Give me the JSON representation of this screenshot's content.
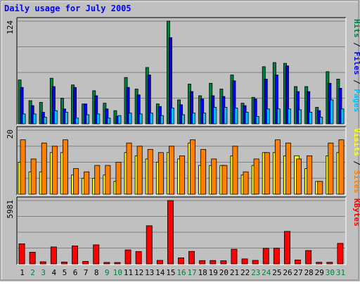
{
  "chart_data": {
    "type": "bar",
    "title": "Daily usage for July 2005",
    "colors": {
      "background": "#c0c0c0",
      "frame_light": "#ffffff",
      "frame_dark": "#808080",
      "plot_bg": "#c0c0c0",
      "gridline": "#808080",
      "title": "#0000ff",
      "hits": "#008040",
      "files": "#0000ff",
      "pages": "#00c0ff",
      "visits": "#ffff00",
      "sites": "#ff8000",
      "kbytes": "#ff0000",
      "weekday_label": "#000000",
      "weekend_label": "#008040"
    },
    "x_labels": [
      "1",
      "2",
      "3",
      "4",
      "5",
      "6",
      "7",
      "8",
      "9",
      "10",
      "11",
      "12",
      "13",
      "14",
      "15",
      "16",
      "17",
      "18",
      "19",
      "20",
      "21",
      "22",
      "23",
      "24",
      "25",
      "26",
      "27",
      "28",
      "29",
      "30",
      "31"
    ],
    "weekend_days": [
      "2",
      "3",
      "9",
      "10",
      "16",
      "17",
      "23",
      "24",
      "30",
      "31"
    ],
    "panels": [
      {
        "id": "usage",
        "max_label": "124",
        "ymax": 124,
        "legend": [
          {
            "label": "Pages",
            "color": "#00c0ff"
          },
          {
            "label": "Files",
            "color": "#0000ff"
          },
          {
            "label": "Hits",
            "color": "#008040"
          }
        ],
        "separator": " / ",
        "series": [
          {
            "name": "Hits",
            "values": [
              53,
              28,
              26,
              55,
              31,
              47,
              24,
              40,
              25,
              16,
              56,
              42,
              68,
              24,
              124,
              29,
              48,
              34,
              49,
              42,
              59,
              25,
              32,
              69,
              74,
              73,
              45,
              45,
              20,
              63,
              54
            ]
          },
          {
            "name": "Files",
            "values": [
              44,
              22,
              14,
              45,
              18,
              44,
              24,
              34,
              18,
              9,
              44,
              35,
              59,
              21,
              104,
              23,
              39,
              30,
              34,
              33,
              52,
              22,
              30,
              54,
              59,
              70,
              39,
              39,
              16,
              49,
              43
            ]
          },
          {
            "name": "Pages",
            "values": [
              12,
              12,
              8,
              16,
              14,
              7,
              11,
              12,
              7,
              10,
              13,
              12,
              13,
              10,
              19,
              11,
              13,
              13,
              20,
              20,
              19,
              14,
              9,
              18,
              18,
              18,
              17,
              14,
              8,
              29,
              18
            ]
          }
        ]
      },
      {
        "id": "visits",
        "max_label": "20",
        "ymax": 20,
        "legend": [
          {
            "label": "Sites",
            "color": "#ff8000"
          },
          {
            "label": "Visits",
            "color": "#ffff00"
          }
        ],
        "separator": " / ",
        "series": [
          {
            "name": "Visits",
            "values": [
              10,
              7,
              7,
              13,
              13,
              6,
              5,
              5,
              6,
              4,
              13,
              12,
              11,
              10,
              13,
              11,
              16,
              9,
              9,
              9,
              12,
              6,
              9,
              13,
              13,
              12,
              12,
              8,
              4,
              12,
              13
            ]
          },
          {
            "name": "Sites",
            "values": [
              17,
              11,
              16,
              15,
              17,
              8,
              7,
              9,
              9,
              10,
              16,
              15,
              14,
              13,
              15,
              12,
              17,
              14,
              11,
              9,
              15,
              7,
              11,
              13,
              17,
              16,
              11,
              12,
              4,
              16,
              17
            ]
          }
        ]
      },
      {
        "id": "kbytes",
        "max_label": "5981",
        "ymax": 5981,
        "legend": [
          {
            "label": "KBytes",
            "color": "#ff0000"
          }
        ],
        "separator": "",
        "series": [
          {
            "name": "KBytes",
            "values": [
              1900,
              1100,
              200,
              1600,
              180,
              1700,
              230,
              1800,
              140,
              130,
              1320,
              1160,
              3600,
              330,
              5981,
              570,
              1180,
              310,
              320,
              290,
              1380,
              470,
              330,
              1470,
              1480,
              3070,
              370,
              1260,
              150,
              150,
              1940
            ]
          }
        ]
      }
    ]
  }
}
